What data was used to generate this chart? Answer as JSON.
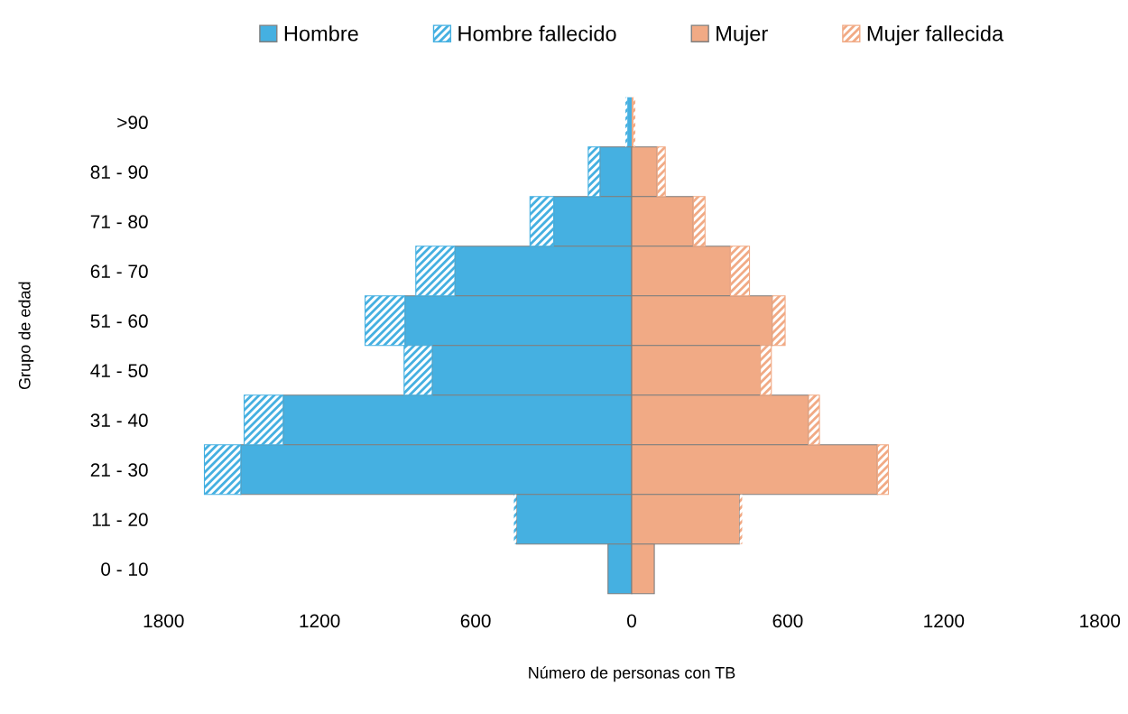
{
  "chart_data": {
    "type": "bar",
    "orientation": "horizontal",
    "stacked": true,
    "categories": [
      ">90",
      "81 - 90",
      "71 - 80",
      "61 - 70",
      "51 - 60",
      "41 - 50",
      "31 - 40",
      "21 - 30",
      "11 - 20",
      "0 - 10"
    ],
    "series": [
      {
        "name": "Hombre",
        "color": "#45b0e1",
        "values": [
          -17,
          -122,
          -300,
          -680,
          -872,
          -767,
          -1340,
          -1503,
          -443,
          -91
        ]
      },
      {
        "name": "Hombre fallecido",
        "color": "#45b0e1",
        "values": [
          -7,
          -45,
          -91,
          -150,
          -153,
          -108,
          -150,
          -140,
          -10,
          null
        ]
      },
      {
        "name": "Mujer",
        "color": "#f1aa85",
        "values": [
          7,
          98,
          237,
          380,
          541,
          495,
          680,
          945,
          415,
          87
        ]
      },
      {
        "name": "Mujer fallecida",
        "color": "#f1aa85",
        "values": [
          7,
          31,
          45,
          73,
          49,
          42,
          42,
          42,
          10,
          null
        ]
      }
    ],
    "xlim": [
      -1800,
      1800
    ],
    "xticks": [
      {
        "value": -1800,
        "label": "1800"
      },
      {
        "value": -1200,
        "label": "1200"
      },
      {
        "value": -600,
        "label": "600"
      },
      0,
      600,
      1200,
      1800
    ],
    "xlabel": "Número de personas con TB",
    "ylabel": "Grupo de edad",
    "grid": false,
    "legend": "top"
  }
}
